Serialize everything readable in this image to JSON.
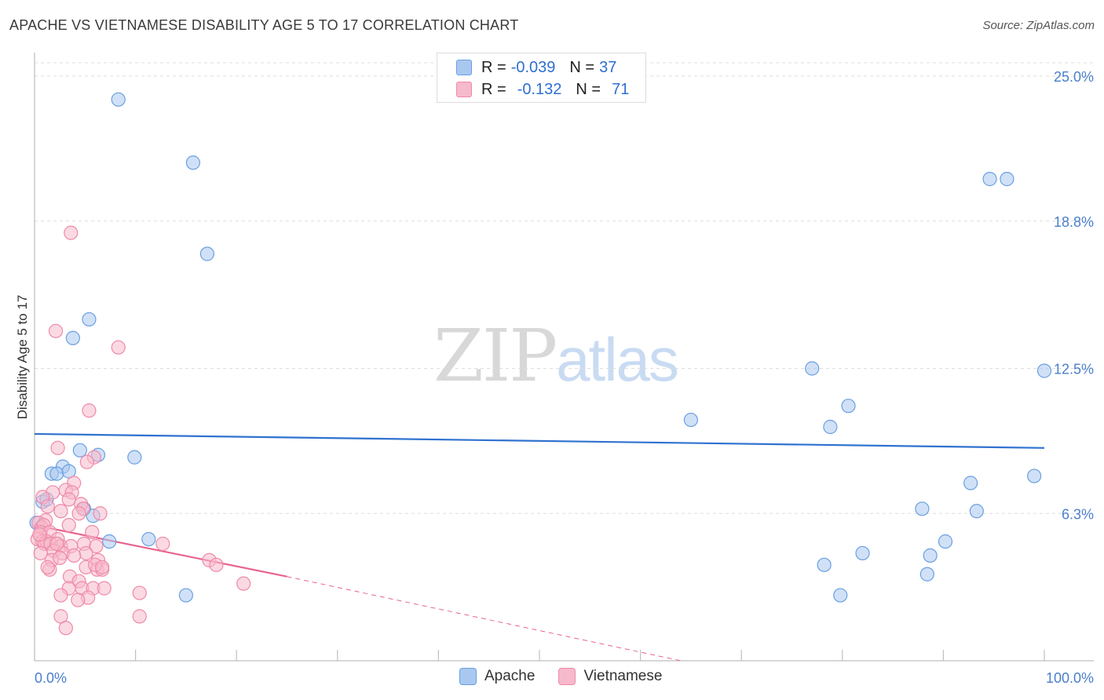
{
  "title": "APACHE VS VIETNAMESE DISABILITY AGE 5 TO 17 CORRELATION CHART",
  "source": "Source: ZipAtlas.com",
  "watermark": {
    "zip": "ZIP",
    "atlas": "atlas"
  },
  "legend_top": {
    "apache": {
      "r_label": "R = ",
      "r_value": "-0.039",
      "n_label": "N = ",
      "n_value": "37"
    },
    "vietnamese": {
      "r_label": "R = ",
      "r_value": "-0.132",
      "n_label": "N = ",
      "n_value": "71"
    }
  },
  "legend_bottom": {
    "apache": "Apache",
    "vietnamese": "Vietnamese"
  },
  "colors": {
    "apache_fill": "#a9c8f0",
    "apache_stroke": "#6a9fe0",
    "apache_line": "#2f72d0",
    "viet_fill": "#f7b9cc",
    "viet_stroke": "#ee8aa8",
    "viet_line": "#e8638f",
    "tick_text": "#4a7fcc",
    "grid": "#dddddd"
  },
  "chart_data": {
    "type": "scatter",
    "xlabel": "",
    "ylabel": "Disability Age 5 to 17",
    "xlim": [
      0,
      100
    ],
    "ylim": [
      0,
      25
    ],
    "x_tick_labels": [
      "0.0%",
      "100.0%"
    ],
    "y_ticks": [
      6.3,
      12.5,
      18.8,
      25.0
    ],
    "y_tick_labels": [
      "6.3%",
      "12.5%",
      "18.8%",
      "25.0%"
    ],
    "grid": true,
    "legend": "top-center",
    "series": [
      {
        "name": "Apache",
        "points": [
          [
            8.3,
            24.0
          ],
          [
            15.7,
            21.3
          ],
          [
            17.1,
            17.4
          ],
          [
            5.4,
            14.6
          ],
          [
            3.8,
            13.8
          ],
          [
            4.5,
            9.0
          ],
          [
            6.3,
            8.8
          ],
          [
            9.9,
            8.7
          ],
          [
            2.8,
            8.3
          ],
          [
            1.7,
            8.0
          ],
          [
            2.2,
            8.0
          ],
          [
            3.4,
            8.1
          ],
          [
            0.8,
            6.8
          ],
          [
            1.2,
            6.9
          ],
          [
            4.9,
            6.5
          ],
          [
            5.8,
            6.2
          ],
          [
            7.4,
            5.1
          ],
          [
            11.3,
            5.2
          ],
          [
            15.0,
            2.8
          ],
          [
            65.0,
            10.3
          ],
          [
            77.0,
            12.5
          ],
          [
            78.8,
            10.0
          ],
          [
            80.6,
            10.9
          ],
          [
            96.3,
            20.6
          ],
          [
            94.6,
            20.6
          ],
          [
            100.0,
            12.4
          ],
          [
            99.0,
            7.9
          ],
          [
            92.7,
            7.6
          ],
          [
            87.9,
            6.5
          ],
          [
            93.3,
            6.4
          ],
          [
            90.2,
            5.1
          ],
          [
            88.7,
            4.5
          ],
          [
            82.0,
            4.6
          ],
          [
            78.2,
            4.1
          ],
          [
            79.8,
            2.8
          ],
          [
            88.4,
            3.7
          ],
          [
            0.2,
            5.9
          ]
        ]
      },
      {
        "name": "Vietnamese",
        "points": [
          [
            3.6,
            18.3
          ],
          [
            2.1,
            14.1
          ],
          [
            8.3,
            13.4
          ],
          [
            5.4,
            10.7
          ],
          [
            2.3,
            9.1
          ],
          [
            5.9,
            8.7
          ],
          [
            5.2,
            8.5
          ],
          [
            3.9,
            7.6
          ],
          [
            3.1,
            7.3
          ],
          [
            3.7,
            7.2
          ],
          [
            1.8,
            7.2
          ],
          [
            3.4,
            6.9
          ],
          [
            0.8,
            7.0
          ],
          [
            4.6,
            6.7
          ],
          [
            1.3,
            6.6
          ],
          [
            4.8,
            6.5
          ],
          [
            2.6,
            6.4
          ],
          [
            4.4,
            6.3
          ],
          [
            6.5,
            6.3
          ],
          [
            1.1,
            6.0
          ],
          [
            0.4,
            5.9
          ],
          [
            0.7,
            5.7
          ],
          [
            0.9,
            5.8
          ],
          [
            3.4,
            5.8
          ],
          [
            0.6,
            5.5
          ],
          [
            1.5,
            5.5
          ],
          [
            5.7,
            5.5
          ],
          [
            0.3,
            5.2
          ],
          [
            0.8,
            5.1
          ],
          [
            1.2,
            5.1
          ],
          [
            2.3,
            5.2
          ],
          [
            1.0,
            5.0
          ],
          [
            1.6,
            5.0
          ],
          [
            2.6,
            4.9
          ],
          [
            3.6,
            4.9
          ],
          [
            4.9,
            5.0
          ],
          [
            6.1,
            4.9
          ],
          [
            12.7,
            5.0
          ],
          [
            0.6,
            4.6
          ],
          [
            1.9,
            4.7
          ],
          [
            2.8,
            4.6
          ],
          [
            5.1,
            4.6
          ],
          [
            1.7,
            4.3
          ],
          [
            2.5,
            4.4
          ],
          [
            6.3,
            4.3
          ],
          [
            17.3,
            4.3
          ],
          [
            18.0,
            4.1
          ],
          [
            1.5,
            3.9
          ],
          [
            5.1,
            4.0
          ],
          [
            6.2,
            3.9
          ],
          [
            6.7,
            3.9
          ],
          [
            6.0,
            4.1
          ],
          [
            3.5,
            3.6
          ],
          [
            4.4,
            3.4
          ],
          [
            20.7,
            3.3
          ],
          [
            3.4,
            3.1
          ],
          [
            4.7,
            3.1
          ],
          [
            5.8,
            3.1
          ],
          [
            6.9,
            3.1
          ],
          [
            2.6,
            2.8
          ],
          [
            5.3,
            2.7
          ],
          [
            4.3,
            2.6
          ],
          [
            10.4,
            2.9
          ],
          [
            2.6,
            1.9
          ],
          [
            10.4,
            1.9
          ],
          [
            3.1,
            1.4
          ],
          [
            0.5,
            5.4
          ],
          [
            2.2,
            5.0
          ],
          [
            1.3,
            4.0
          ],
          [
            6.7,
            4.0
          ],
          [
            3.9,
            4.5
          ]
        ]
      }
    ],
    "trend_lines": [
      {
        "name": "Apache",
        "x": [
          0,
          100
        ],
        "y": [
          9.7,
          9.1
        ],
        "style": "solid"
      },
      {
        "name": "Vietnamese",
        "x": [
          0,
          25
        ],
        "y": [
          5.8,
          3.6
        ],
        "style": "solid"
      },
      {
        "name": "Vietnamese",
        "x": [
          25,
          64
        ],
        "y": [
          3.6,
          0.0
        ],
        "style": "dashed"
      }
    ]
  }
}
